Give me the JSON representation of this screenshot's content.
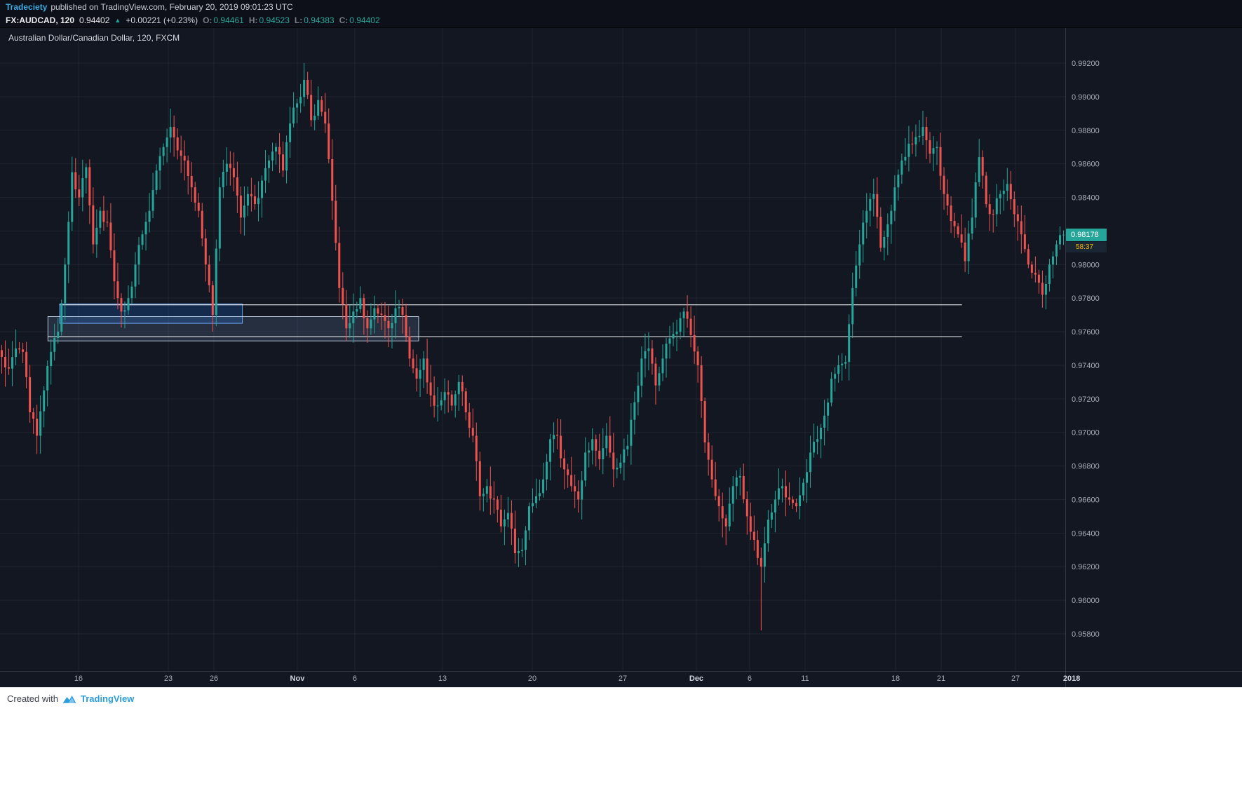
{
  "header": {
    "author": "Tradeciety",
    "published_text": "published on TradingView.com, February 20, 2019 09:01:23 UTC",
    "symbol": "FX:AUDCAD, 120",
    "last_price": "0.94402",
    "change_text": "+0.00221 (+0.23%)",
    "ohlc": [
      {
        "label": "O:",
        "value": "0.94461"
      },
      {
        "label": "H:",
        "value": "0.94523"
      },
      {
        "label": "L:",
        "value": "0.94383"
      },
      {
        "label": "C:",
        "value": "0.94402"
      }
    ]
  },
  "chart": {
    "title": "Australian Dollar/Canadian Dollar, 120, FXCM",
    "price_label": "0.98178",
    "countdown": "58:37"
  },
  "footer": {
    "created_with": "Created with",
    "brand": "TradingView"
  },
  "colors": {
    "up": "#26a69a",
    "down": "#ef5350",
    "background": "#131722",
    "grid": "rgba(255,255,255,0.06)",
    "separator": "rgba(255,255,255,0.14)",
    "axis_text": "#a8aeb8",
    "axis_text_major": "#d1d4dc",
    "accent": "#3fa9e0",
    "price_label_bg": "#26a69a",
    "countdown_text": "#f0b90b",
    "drawn_line": "#ffffff"
  },
  "chart_data": {
    "type": "candlestick",
    "title": "Australian Dollar/Canadian Dollar, 120, FXCM",
    "symbol": "AUDCAD",
    "timeframe_minutes": 120,
    "exchange": "FXCM",
    "y_min": 0.958,
    "y_max": 0.992,
    "y_step": 0.002,
    "last_price": 0.98178,
    "x_ticks": [
      {
        "label": "16",
        "f": 0.0737,
        "major": false
      },
      {
        "label": "23",
        "f": 0.158,
        "major": false
      },
      {
        "label": "26",
        "f": 0.2008,
        "major": false
      },
      {
        "label": "Nov",
        "f": 0.2791,
        "major": true
      },
      {
        "label": "6",
        "f": 0.3331,
        "major": false
      },
      {
        "label": "13",
        "f": 0.4154,
        "major": false
      },
      {
        "label": "20",
        "f": 0.4997,
        "major": false
      },
      {
        "label": "27",
        "f": 0.5846,
        "major": false
      },
      {
        "label": "Dec",
        "f": 0.6537,
        "major": true
      },
      {
        "label": "6",
        "f": 0.7037,
        "major": false
      },
      {
        "label": "11",
        "f": 0.7557,
        "major": false
      },
      {
        "label": "18",
        "f": 0.8407,
        "major": false
      },
      {
        "label": "21",
        "f": 0.8835,
        "major": false
      },
      {
        "label": "27",
        "f": 0.9533,
        "major": false
      },
      {
        "label": "2018",
        "f": 1.006,
        "major": true
      }
    ],
    "anchor_closes": [
      0.9745,
      0.9738,
      0.975,
      0.9748,
      0.9712,
      0.9698,
      0.9725,
      0.9748,
      0.976,
      0.98,
      0.9855,
      0.984,
      0.9858,
      0.9812,
      0.9832,
      0.9825,
      0.979,
      0.9772,
      0.978,
      0.98,
      0.9818,
      0.9832,
      0.9856,
      0.987,
      0.9882,
      0.9868,
      0.9862,
      0.9846,
      0.9832,
      0.98,
      0.977,
      0.9846,
      0.986,
      0.9852,
      0.9828,
      0.9842,
      0.9836,
      0.985,
      0.9862,
      0.987,
      0.9856,
      0.9884,
      0.9896,
      0.991,
      0.9886,
      0.9898,
      0.9884,
      0.9838,
      0.9786,
      0.9762,
      0.9772,
      0.978,
      0.9762,
      0.9774,
      0.977,
      0.9762,
      0.9774,
      0.977,
      0.9744,
      0.9732,
      0.9744,
      0.9722,
      0.9716,
      0.9724,
      0.9716,
      0.973,
      0.9712,
      0.9698,
      0.9662,
      0.9668,
      0.966,
      0.9644,
      0.9652,
      0.9628,
      0.963,
      0.9656,
      0.9662,
      0.9672,
      0.9696,
      0.9698,
      0.9678,
      0.9668,
      0.966,
      0.9688,
      0.9696,
      0.9684,
      0.9698,
      0.9678,
      0.9682,
      0.9692,
      0.9718,
      0.9744,
      0.975,
      0.9728,
      0.9744,
      0.9756,
      0.976,
      0.9772,
      0.9758,
      0.974,
      0.9694,
      0.9672,
      0.9656,
      0.9644,
      0.9668,
      0.9674,
      0.965,
      0.9636,
      0.962,
      0.9648,
      0.966,
      0.9668,
      0.966,
      0.9656,
      0.967,
      0.9688,
      0.9696,
      0.971,
      0.9732,
      0.974,
      0.9742,
      0.9786,
      0.9812,
      0.9832,
      0.9842,
      0.981,
      0.9824,
      0.9846,
      0.9862,
      0.9872,
      0.9876,
      0.9882,
      0.9866,
      0.987,
      0.9842,
      0.9826,
      0.9818,
      0.9802,
      0.9828,
      0.9864,
      0.9836,
      0.983,
      0.9842,
      0.9848,
      0.983,
      0.9818,
      0.98,
      0.9794,
      0.9782,
      0.98,
      0.9812,
      0.98178
    ],
    "special_wicks": [
      {
        "f": 0.7152,
        "low": 0.9582
      },
      {
        "f": 0.2848,
        "high": 0.992
      }
    ],
    "horizontal_lines": [
      {
        "price": 0.9776,
        "x0": 0.056,
        "x1": 0.903
      },
      {
        "price": 0.9757,
        "x0": 0.045,
        "x1": 0.903
      }
    ],
    "zones": [
      {
        "price_top": 0.97765,
        "price_bottom": 0.9765,
        "x0": 0.056,
        "x1": 0.2275,
        "fill": "rgba(33,120,230,0.22)",
        "stroke": "rgba(100,165,255,0.95)"
      },
      {
        "price_top": 0.9769,
        "price_bottom": 0.97545,
        "x0": 0.045,
        "x1": 0.393,
        "fill": "rgba(150,195,245,0.14)",
        "stroke": "rgba(205,222,245,0.85)"
      }
    ],
    "legend": [],
    "grid": true,
    "y_axis_side": "right"
  }
}
